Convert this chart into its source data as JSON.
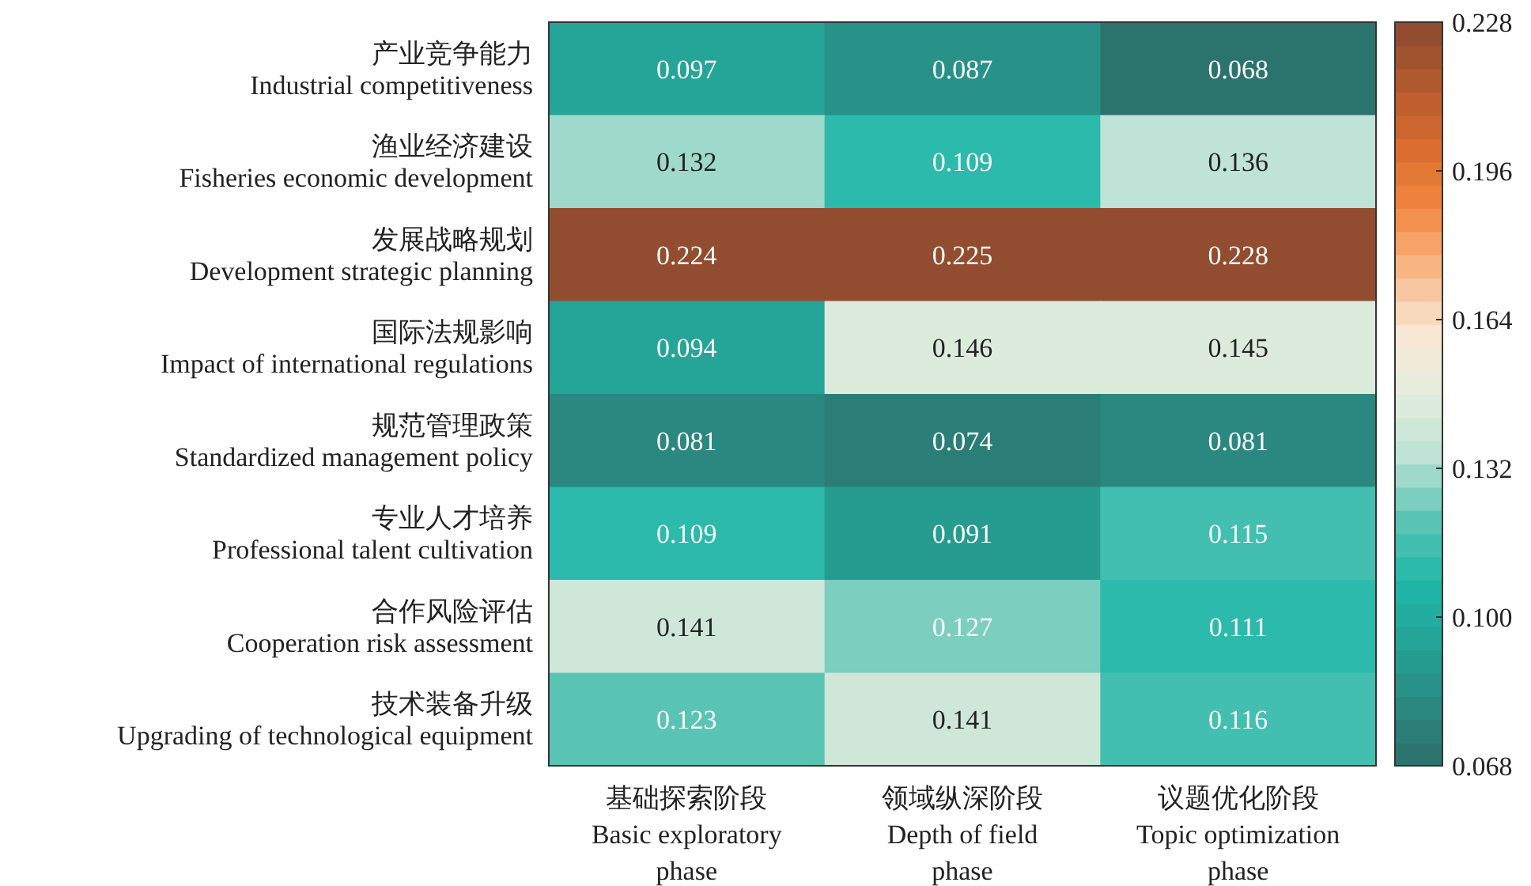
{
  "chart_data": {
    "type": "heatmap",
    "categories": [
      "基础探索阶段\nBasic exploratory\nphase",
      "领域纵深阶段\nDepth of field\nphase",
      "议题优化阶段\nTopic optimization\nphase"
    ],
    "y_categories": [
      "产业竞争能力\nIndustrial competitiveness",
      "渔业经济建设\nFisheries economic development",
      "发展战略规划\nDevelopment strategic planning",
      "国际法规影响\nImpact of international regulations",
      "规范管理政策\nStandardized management policy",
      "专业人才培养\nProfessional talent cultivation",
      "合作风险评估\nCooperation risk assessment",
      "技术装备升级\nUpgrading of technological equipment"
    ],
    "cells": [
      [
        0.097,
        0.087,
        0.068
      ],
      [
        0.132,
        0.109,
        0.136
      ],
      [
        0.224,
        0.225,
        0.228
      ],
      [
        0.094,
        0.146,
        0.145
      ],
      [
        0.081,
        0.074,
        0.081
      ],
      [
        0.109,
        0.091,
        0.115
      ],
      [
        0.141,
        0.127,
        0.111
      ],
      [
        0.123,
        0.141,
        0.116
      ]
    ],
    "data_labels": true,
    "colors": [
      "#2b6f69",
      "#2a8a82",
      "#24a497",
      "#1fb8a9",
      "#5ec5b5",
      "#bde2d5",
      "#e4eddf",
      "#f9e7d3",
      "#f8b98a",
      "#f3873f",
      "#d96c2e",
      "#b35a2e",
      "#8a4a30"
    ],
    "clim": [
      0.068,
      0.228
    ],
    "cticks": [
      0.068,
      {
        "value": 0.1,
        "label": "0.100"
      },
      0.132,
      0.164,
      0.196,
      0.228
    ]
  }
}
